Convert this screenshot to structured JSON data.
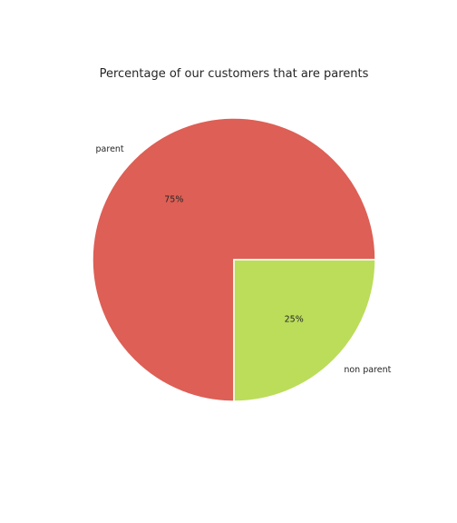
{
  "chart_data": {
    "type": "pie",
    "title": "Percentage of our customers that are parents",
    "slices": [
      {
        "label": "parent",
        "value": 75,
        "pct_label": "75%",
        "color": "#dd5f55"
      },
      {
        "label": "non parent",
        "value": 25,
        "pct_label": "25%",
        "color": "#bbdd5a"
      }
    ],
    "legend": "none"
  }
}
